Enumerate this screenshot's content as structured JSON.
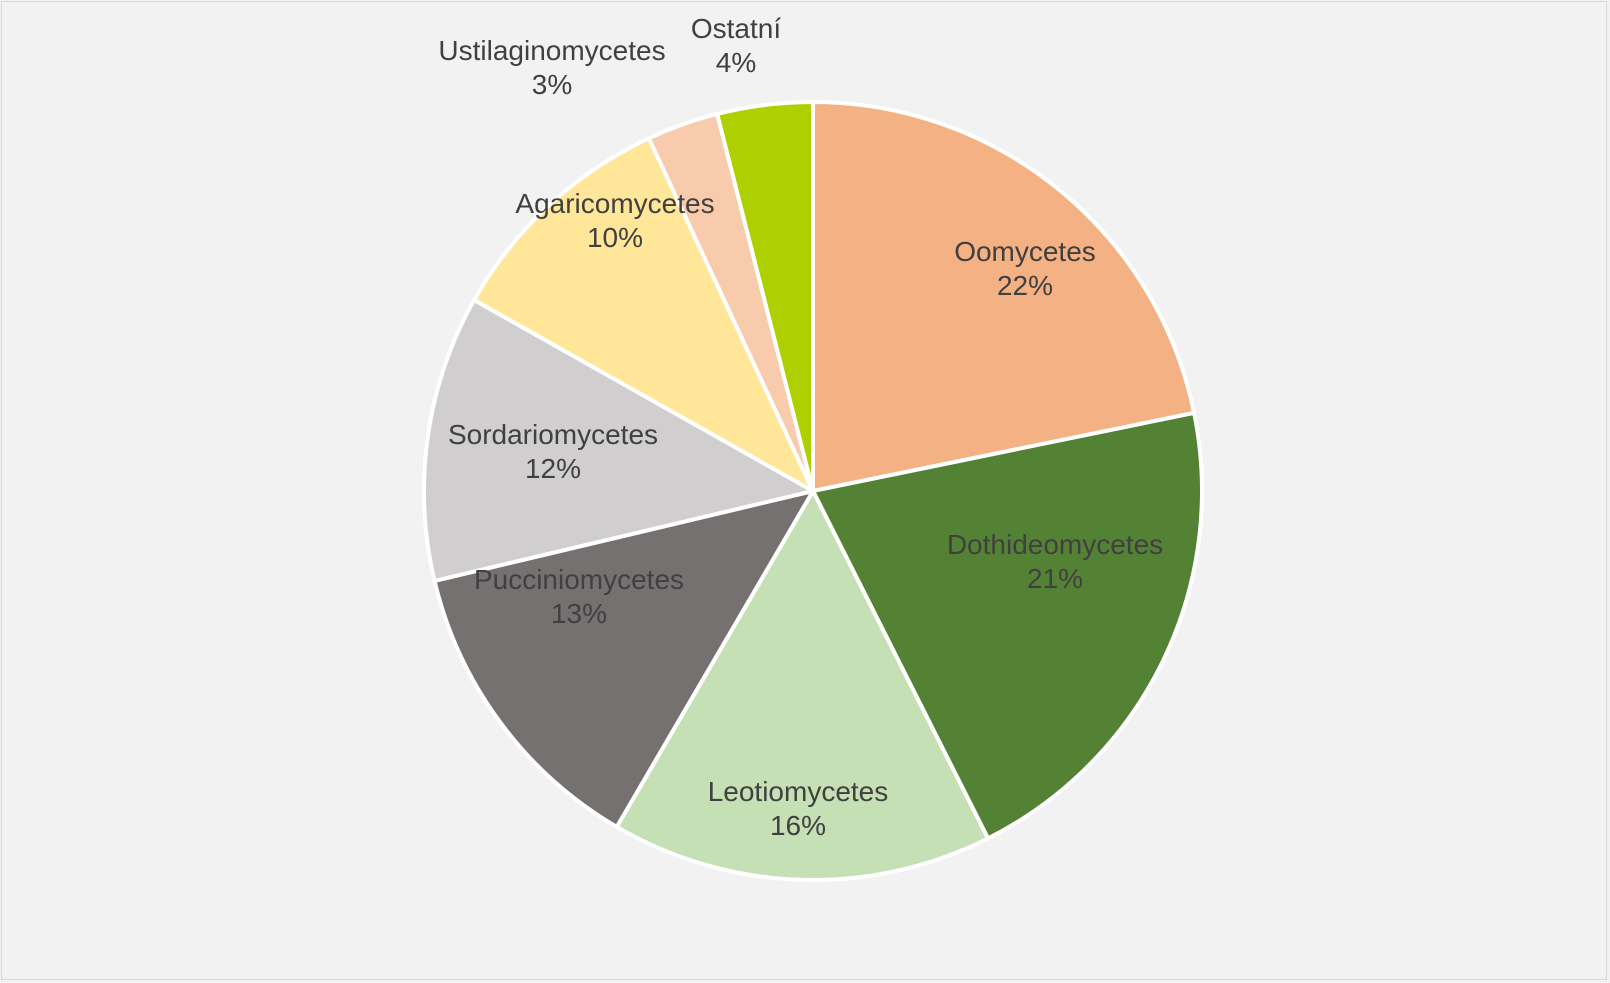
{
  "chart_data": {
    "type": "pie",
    "slices": [
      {
        "name": "Oomycetes",
        "value": 22,
        "label": "22%",
        "color": "#f4b183"
      },
      {
        "name": "Dothideomycetes",
        "value": 21,
        "label": "21%",
        "color": "#548235"
      },
      {
        "name": "Leotiomycetes",
        "value": 16,
        "label": "16%",
        "color": "#c5e0b4"
      },
      {
        "name": "Pucciniomycetes",
        "value": 13,
        "label": "13%",
        "color": "#757171"
      },
      {
        "name": "Sordariomycetes",
        "value": 12,
        "label": "12%",
        "color": "#d0cece"
      },
      {
        "name": "Agaricomycetes",
        "value": 10,
        "label": "10%",
        "color": "#ffe699"
      },
      {
        "name": "Ustilaginomycetes",
        "value": 3,
        "label": "3%",
        "color": "#f8cbad"
      },
      {
        "name": "Ostatní",
        "value": 4,
        "label": "4%",
        "color": "#aed000"
      }
    ],
    "start_angle": "12 o'clock",
    "direction": "clockwise",
    "legend": "none",
    "data_labels": "category name and percentage"
  }
}
